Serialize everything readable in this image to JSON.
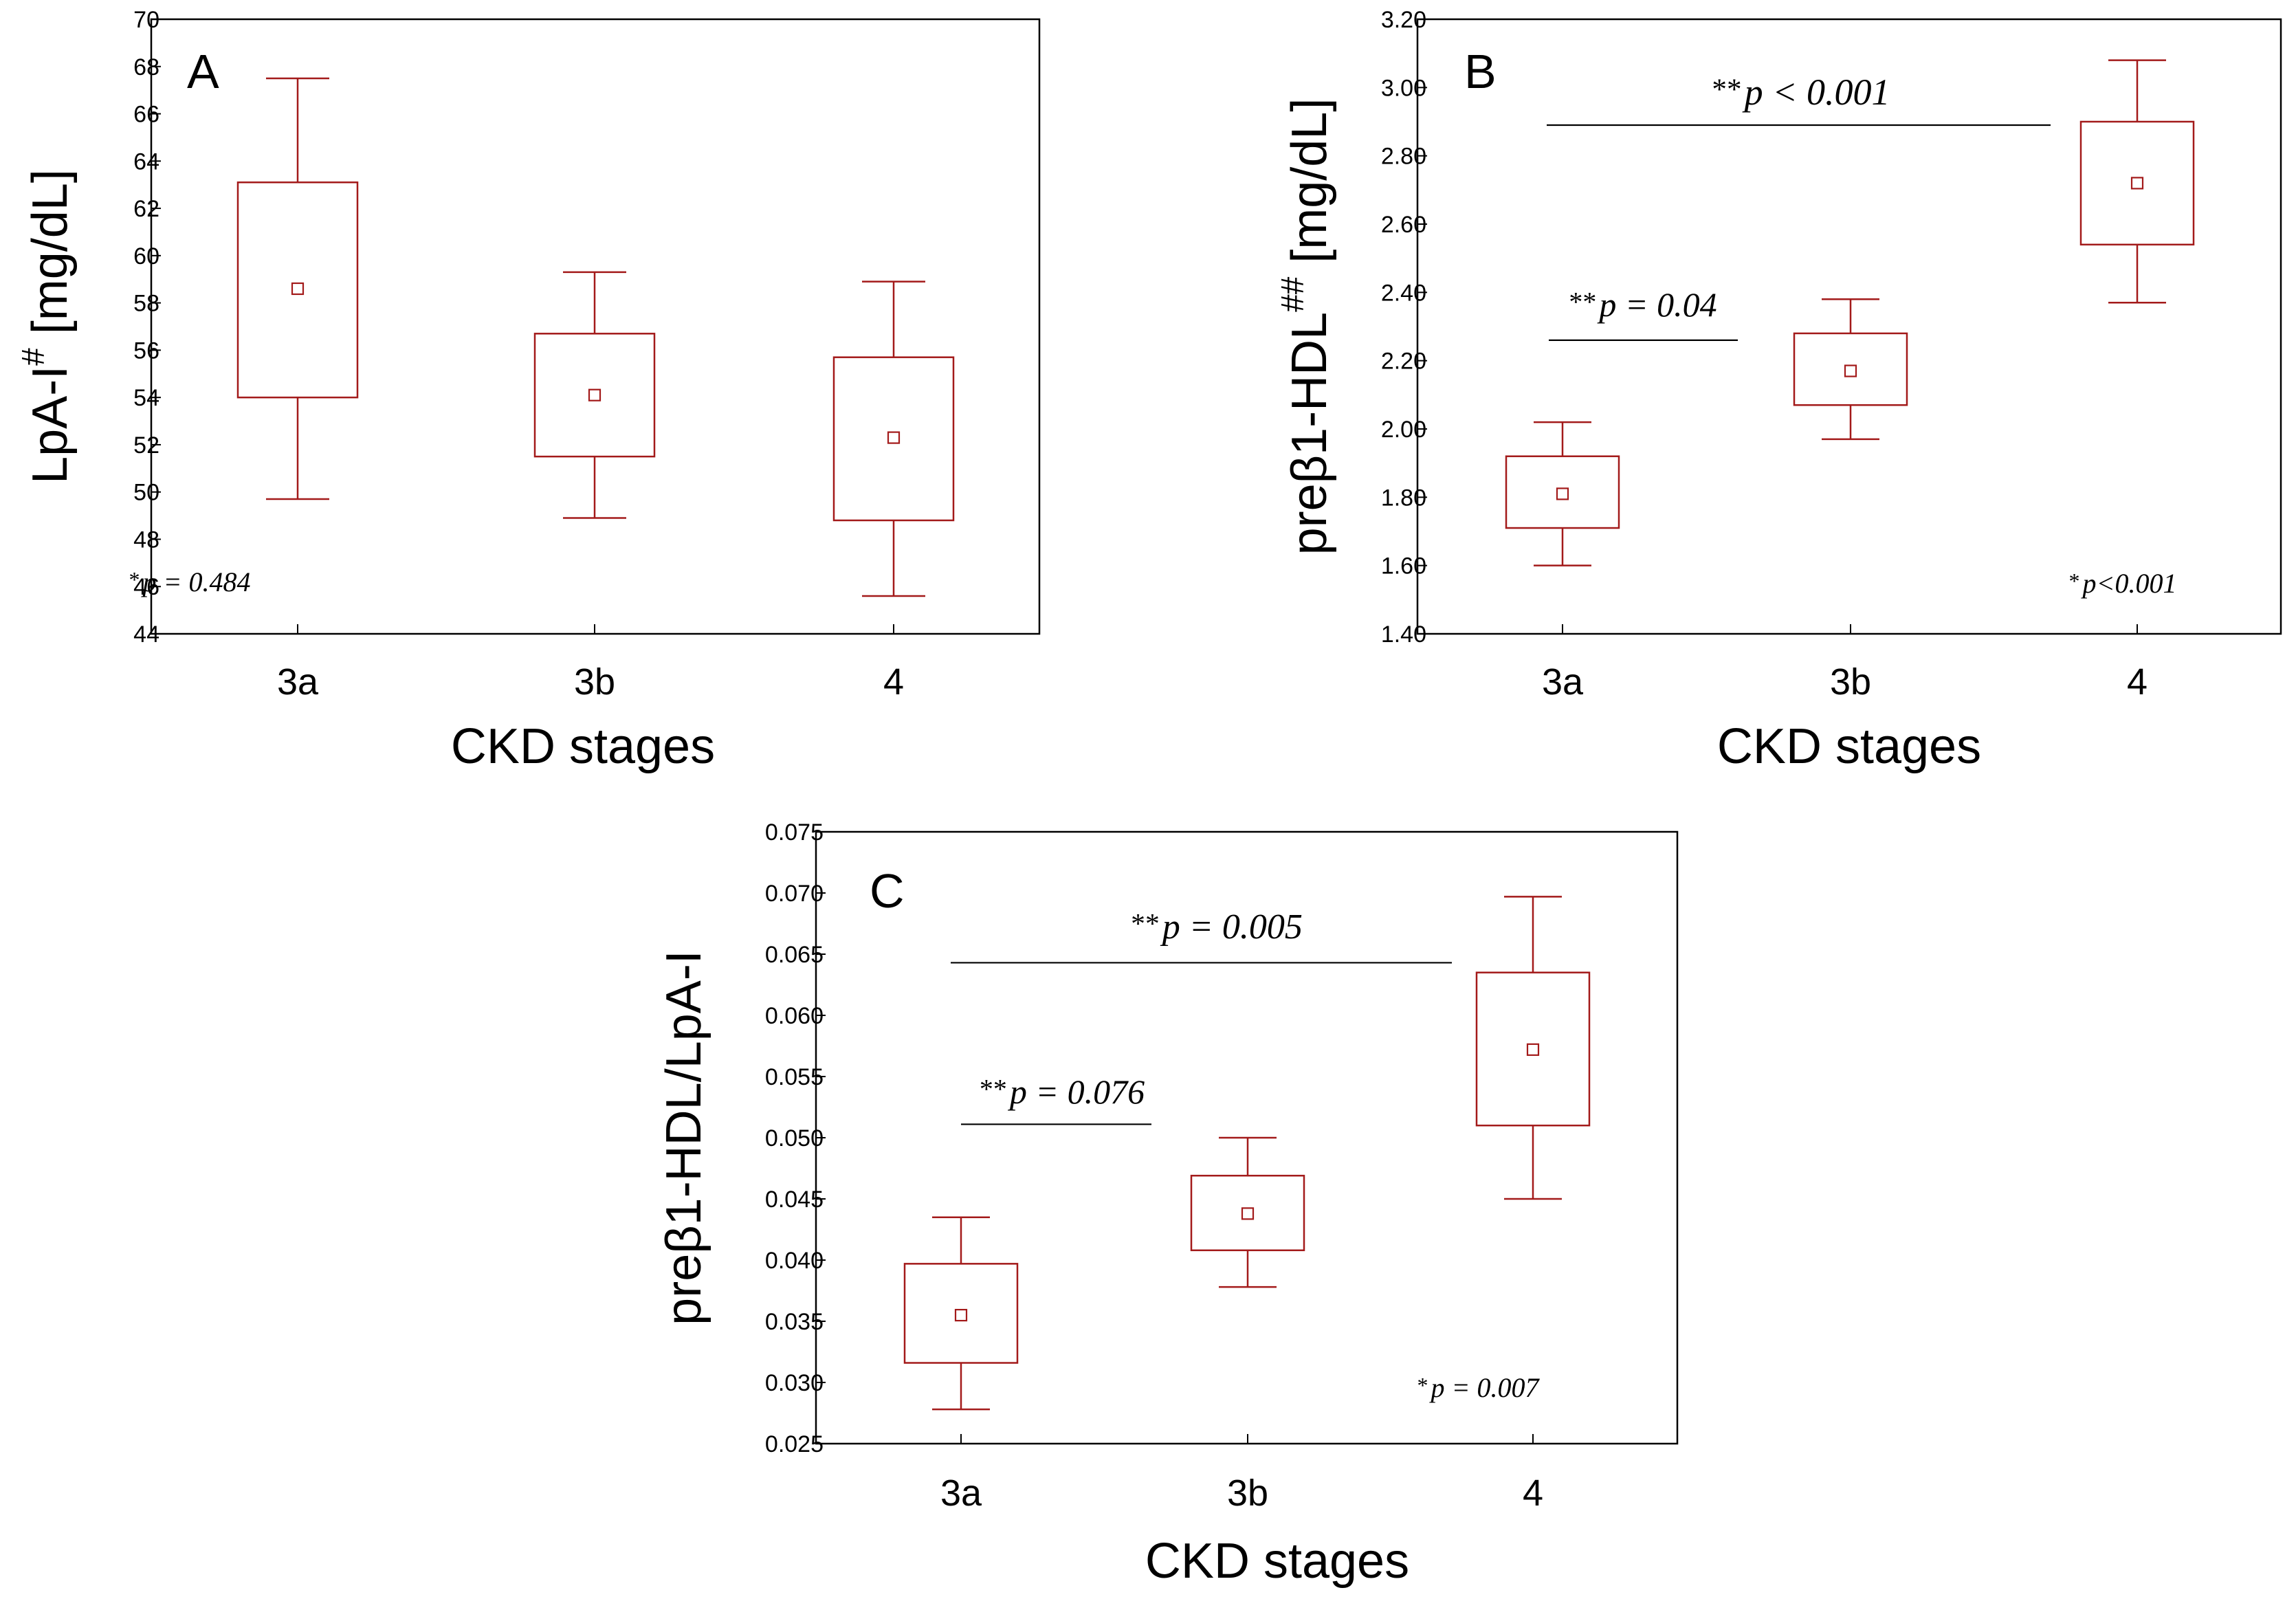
{
  "chart_data": [
    {
      "type": "box",
      "panel_label": "A",
      "ylabel_main": "LpA-I",
      "ylabel_sup": "#",
      "ylabel_unit": " [mg/dL]",
      "xlabel": "CKD stages",
      "categories": [
        "3a",
        "3b",
        "4"
      ],
      "ylim": [
        44,
        70
      ],
      "yticks": [
        "44",
        "46",
        "48",
        "50",
        "52",
        "54",
        "56",
        "58",
        "60",
        "62",
        "64",
        "66",
        "68",
        "70"
      ],
      "ytick_values": [
        44,
        46,
        48,
        50,
        52,
        54,
        56,
        58,
        60,
        62,
        64,
        66,
        68,
        70
      ],
      "boxes": [
        {
          "mean": 58.6,
          "box_low": 54.0,
          "box_high": 63.1,
          "whisker_low": 49.7,
          "whisker_high": 67.5
        },
        {
          "mean": 54.1,
          "box_low": 51.5,
          "box_high": 56.7,
          "whisker_low": 48.9,
          "whisker_high": 59.3
        },
        {
          "mean": 52.3,
          "box_low": 48.8,
          "box_high": 55.7,
          "whisker_low": 45.6,
          "whisker_high": 58.9
        }
      ],
      "annotations": [
        {
          "stars": "*",
          "text": "p = 0.484"
        }
      ],
      "brackets": []
    },
    {
      "type": "box",
      "panel_label": "B",
      "ylabel_main": "preβ1-HDL",
      "ylabel_sup": "##",
      "ylabel_unit": " [mg/dL]",
      "xlabel": "CKD stages",
      "categories": [
        "3a",
        "3b",
        "4"
      ],
      "ylim": [
        1.4,
        3.2
      ],
      "yticks": [
        "1.40",
        "1.60",
        "1.80",
        "2.00",
        "2.20",
        "2.40",
        "2.60",
        "2.80",
        "3.00",
        "3.20"
      ],
      "ytick_values": [
        1.4,
        1.6,
        1.8,
        2.0,
        2.2,
        2.4,
        2.6,
        2.8,
        3.0,
        3.2
      ],
      "boxes": [
        {
          "mean": 1.81,
          "box_low": 1.71,
          "box_high": 1.92,
          "whisker_low": 1.6,
          "whisker_high": 2.02
        },
        {
          "mean": 2.17,
          "box_low": 2.07,
          "box_high": 2.28,
          "whisker_low": 1.97,
          "whisker_high": 2.38
        },
        {
          "mean": 2.72,
          "box_low": 2.54,
          "box_high": 2.9,
          "whisker_low": 2.37,
          "whisker_high": 3.08
        }
      ],
      "annotations": [
        {
          "stars": "*",
          "text": "p<0.001"
        }
      ],
      "brackets": [
        {
          "stars": "**",
          "text": "p = 0.04",
          "y": 2.26
        },
        {
          "stars": "**",
          "text": "p < 0.001",
          "y": 2.89
        }
      ]
    },
    {
      "type": "box",
      "panel_label": "C",
      "ylabel_main": "preβ1-HDL/LpA-I",
      "ylabel_sup": "",
      "ylabel_unit": "",
      "xlabel": "CKD stages",
      "categories": [
        "3a",
        "3b",
        "4"
      ],
      "ylim": [
        0.025,
        0.075
      ],
      "yticks": [
        "0.025",
        "0.030",
        "0.035",
        "0.040",
        "0.045",
        "0.050",
        "0.055",
        "0.060",
        "0.065",
        "0.070",
        "0.075"
      ],
      "ytick_values": [
        0.025,
        0.03,
        0.035,
        0.04,
        0.045,
        0.05,
        0.055,
        0.06,
        0.065,
        0.07,
        0.075
      ],
      "boxes": [
        {
          "mean": 0.0355,
          "box_low": 0.0316,
          "box_high": 0.0397,
          "whisker_low": 0.0278,
          "whisker_high": 0.0435
        },
        {
          "mean": 0.0438,
          "box_low": 0.0408,
          "box_high": 0.0469,
          "whisker_low": 0.0378,
          "whisker_high": 0.05
        },
        {
          "mean": 0.0572,
          "box_low": 0.051,
          "box_high": 0.0635,
          "whisker_low": 0.045,
          "whisker_high": 0.0697
        }
      ],
      "annotations": [
        {
          "stars": "*",
          "text": "p = 0.007"
        }
      ],
      "brackets": [
        {
          "stars": "**",
          "text": "p = 0.076",
          "y": 0.0511
        },
        {
          "stars": "**",
          "text": "p = 0.005",
          "y": 0.0643
        }
      ]
    }
  ],
  "colors": {
    "box": "#a31a1a",
    "axis": "#000000",
    "bracket": "#000000"
  }
}
